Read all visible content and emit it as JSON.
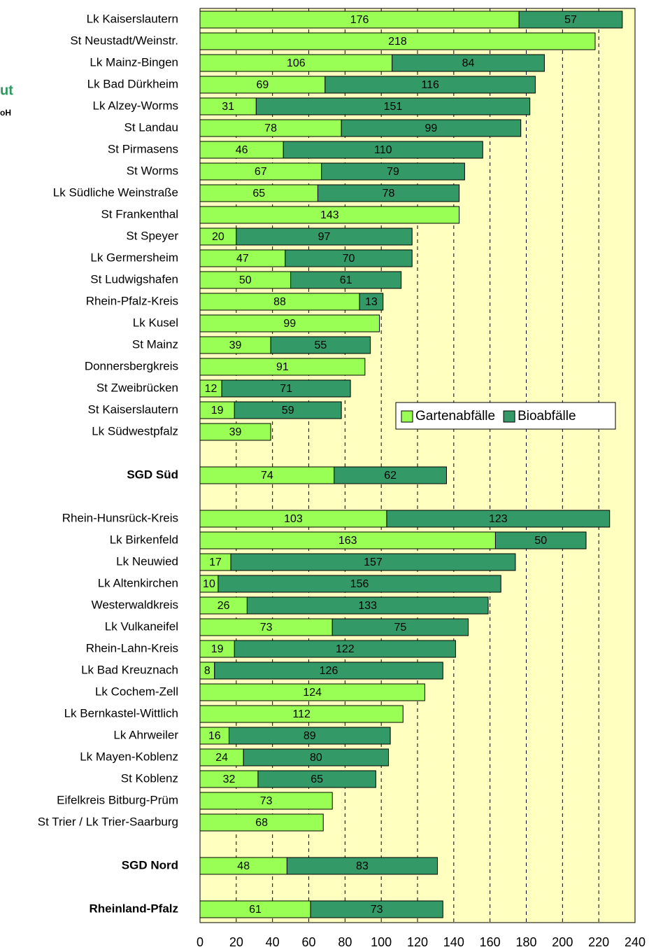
{
  "logo": [
    "ut",
    "oH"
  ],
  "chart_data": {
    "type": "stacked-bar-horizontal",
    "categories": [
      "Lk Kaiserslautern",
      "St Neustadt/Weinstr.",
      "Lk Mainz-Bingen",
      "Lk Bad Dürkheim",
      "Lk Alzey-Worms",
      "St Landau",
      "St Pirmasens",
      "St Worms",
      "Lk Südliche Weinstraße",
      "St Frankenthal",
      "St Speyer",
      "Lk Germersheim",
      "St Ludwigshafen",
      "Rhein-Pfalz-Kreis",
      "Lk Kusel",
      "St Mainz",
      "Donnersbergkreis",
      "St Zweibrücken",
      "St Kaiserslautern",
      "Lk Südwestpfalz",
      null,
      "SGD Süd",
      null,
      "Rhein-Hunsrück-Kreis",
      "Lk Birkenfeld",
      "Lk Neuwied",
      "Lk Altenkirchen",
      "Westerwaldkreis",
      "Lk Vulkaneifel",
      "Rhein-Lahn-Kreis",
      "Lk Bad Kreuznach",
      "Lk Cochem-Zell",
      "Lk Bernkastel-Wittlich",
      "Lk Ahrweiler",
      "Lk Mayen-Koblenz",
      "St Koblenz",
      "Eifelkreis Bitburg-Prüm",
      "St Trier / Lk Trier-Saarburg",
      null,
      "SGD Nord",
      null,
      "Rheinland-Pfalz"
    ],
    "series": [
      {
        "name": "Gartenabfälle",
        "color": "#99ff55",
        "values": [
          176,
          218,
          106,
          69,
          31,
          78,
          46,
          67,
          65,
          143,
          20,
          47,
          50,
          88,
          99,
          39,
          91,
          12,
          19,
          39,
          null,
          74,
          null,
          103,
          163,
          17,
          10,
          26,
          73,
          19,
          8,
          124,
          112,
          16,
          24,
          32,
          73,
          68,
          null,
          48,
          null,
          61
        ]
      },
      {
        "name": "Bioabfälle",
        "color": "#339966",
        "values": [
          57,
          null,
          84,
          116,
          151,
          99,
          110,
          79,
          78,
          null,
          97,
          70,
          61,
          13,
          null,
          55,
          null,
          71,
          59,
          null,
          null,
          62,
          null,
          123,
          50,
          157,
          156,
          133,
          75,
          122,
          126,
          null,
          null,
          89,
          80,
          65,
          null,
          null,
          null,
          83,
          null,
          73
        ]
      }
    ],
    "xlim": [
      0,
      240
    ],
    "xticks": [
      0,
      20,
      40,
      60,
      80,
      100,
      120,
      140,
      160,
      180,
      200,
      220,
      240
    ],
    "grid": true,
    "legend": "right"
  }
}
